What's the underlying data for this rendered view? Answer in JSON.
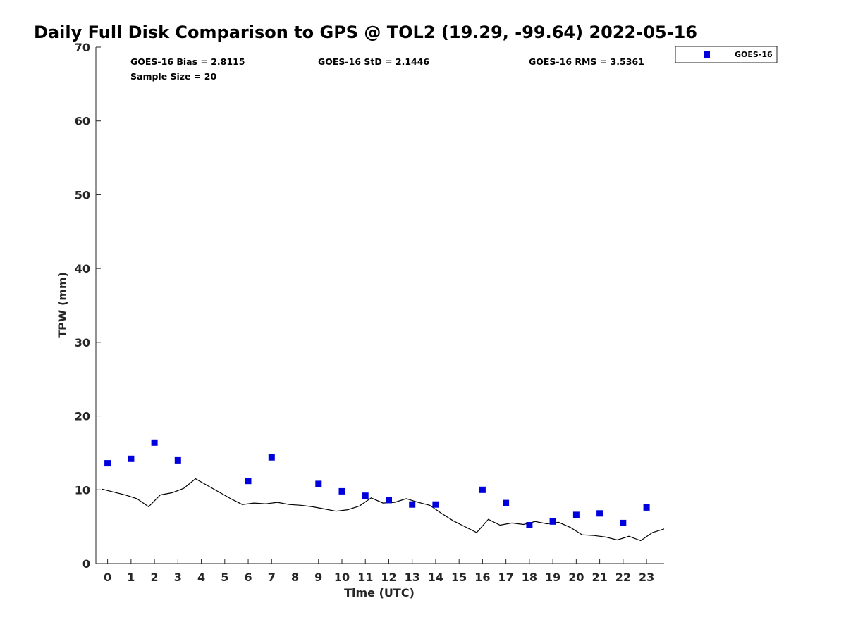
{
  "chart_data": {
    "type": "scatter",
    "title": "Daily Full Disk Comparison to GPS @ TOL2 (19.29, -99.64) 2022-05-16",
    "xlabel": "Time (UTC)",
    "ylabel": "TPW (mm)",
    "xlim": [
      -0.5,
      23.75
    ],
    "ylim": [
      0,
      70
    ],
    "x_ticks": [
      "0",
      "1",
      "2",
      "3",
      "4",
      "5",
      "6",
      "7",
      "8",
      "9",
      "10",
      "11",
      "12",
      "13",
      "14",
      "15",
      "16",
      "17",
      "18",
      "19",
      "20",
      "21",
      "22",
      "23"
    ],
    "y_ticks": [
      "0",
      "10",
      "20",
      "30",
      "40",
      "50",
      "60",
      "70"
    ],
    "grid": false,
    "legend": {
      "position": "top-right",
      "entries": [
        "GOES-16"
      ]
    },
    "stats": {
      "bias": "GOES-16 Bias = 2.8115",
      "std": "GOES-16 StD = 2.1446",
      "rms": "GOES-16 RMS = 3.5361",
      "sample_size": "Sample Size = 20"
    },
    "series": [
      {
        "name": "GOES-16",
        "kind": "scatter",
        "color": "#0000dd",
        "x": [
          0,
          1,
          2,
          3,
          6,
          7,
          9,
          10,
          11,
          12,
          13,
          14,
          16,
          17,
          18,
          19,
          20,
          21,
          22,
          23
        ],
        "y": [
          13.6,
          14.2,
          16.4,
          14.0,
          11.2,
          14.4,
          10.8,
          9.8,
          9.2,
          8.6,
          8.0,
          8.0,
          10.0,
          8.2,
          5.2,
          5.7,
          6.6,
          6.8,
          5.5,
          7.6
        ]
      },
      {
        "kind": "line",
        "color": "#000000",
        "x": [
          -0.25,
          0.25,
          0.75,
          1.25,
          1.75,
          2.25,
          2.75,
          3.25,
          3.75,
          4.25,
          4.75,
          5.25,
          5.75,
          6.25,
          6.75,
          7.25,
          7.75,
          8.25,
          8.75,
          9.25,
          9.75,
          10.25,
          10.75,
          11.25,
          11.75,
          12.25,
          12.75,
          13.25,
          13.75,
          14.25,
          14.75,
          15.25,
          15.75,
          16.25,
          16.75,
          17.25,
          17.75,
          18.25,
          18.75,
          19.25,
          19.75,
          20.25,
          20.75,
          21.25,
          21.75,
          22.25,
          22.75,
          23.25,
          23.75
        ],
        "y": [
          10.1,
          9.7,
          9.3,
          8.8,
          7.7,
          9.3,
          9.6,
          10.2,
          11.5,
          10.6,
          9.7,
          8.8,
          8.0,
          8.2,
          8.1,
          8.3,
          8.0,
          7.9,
          7.7,
          7.4,
          7.1,
          7.3,
          7.8,
          8.9,
          8.2,
          8.3,
          8.8,
          8.3,
          7.9,
          6.8,
          5.8,
          5.0,
          4.2,
          6.0,
          5.2,
          5.5,
          5.3,
          5.7,
          5.4,
          5.6,
          4.9,
          3.9,
          3.8,
          3.6,
          3.2,
          3.7,
          3.1,
          4.2,
          4.7
        ]
      }
    ]
  }
}
